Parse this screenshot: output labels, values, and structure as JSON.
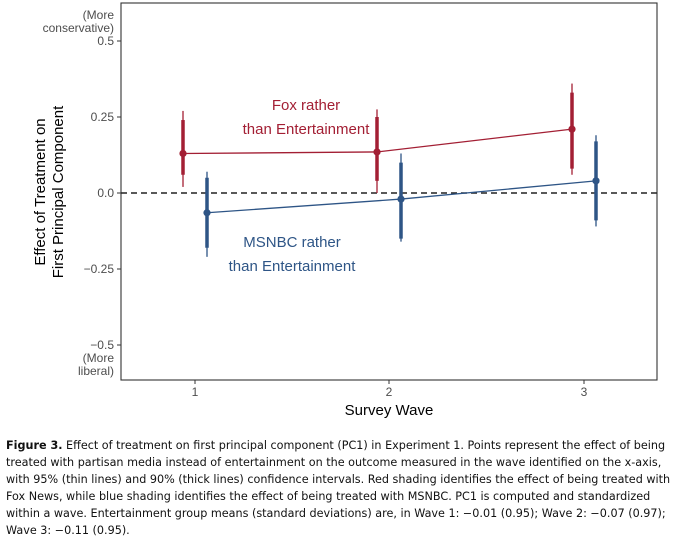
{
  "chart_data": {
    "type": "scatter",
    "xlabel": "Survey Wave",
    "ylabel_line1": "Effect of Treatment on",
    "ylabel_line2": "First Principal Component",
    "x": [
      1,
      2,
      3
    ],
    "ylim": [
      -0.5,
      0.5
    ],
    "y_ticks": [
      {
        "value": 0.5,
        "lines": [
          "(More",
          "conservative)",
          "0.5"
        ]
      },
      {
        "value": 0.25,
        "lines": [
          "0.25"
        ]
      },
      {
        "value": 0.0,
        "lines": [
          "0.0"
        ]
      },
      {
        "value": -0.25,
        "lines": [
          "−0.25"
        ]
      },
      {
        "value": -0.5,
        "lines": [
          "−0.5",
          "(More",
          "liberal)"
        ]
      }
    ],
    "x_ticks": [
      "1",
      "2",
      "3"
    ],
    "reference_line": {
      "y": 0,
      "style": "dashed"
    },
    "grid": false,
    "series": [
      {
        "key": "fox",
        "color": "#a31f34",
        "label_lines": [
          "Fox rather",
          "than Entertainment"
        ],
        "points": [
          {
            "wave": 1,
            "estimate": 0.13,
            "ci90": [
              0.06,
              0.24
            ],
            "ci95": [
              0.02,
              0.27
            ]
          },
          {
            "wave": 2,
            "estimate": 0.135,
            "ci90": [
              0.04,
              0.25
            ],
            "ci95": [
              0.0,
              0.275
            ]
          },
          {
            "wave": 3,
            "estimate": 0.21,
            "ci90": [
              0.08,
              0.33
            ],
            "ci95": [
              0.06,
              0.36
            ]
          }
        ]
      },
      {
        "key": "msnbc",
        "color": "#2e5586",
        "label_lines": [
          "MSNBC rather",
          "than Entertainment"
        ],
        "points": [
          {
            "wave": 1,
            "estimate": -0.065,
            "ci90": [
              -0.18,
              0.05
            ],
            "ci95": [
              -0.21,
              0.07
            ]
          },
          {
            "wave": 2,
            "estimate": -0.02,
            "ci90": [
              -0.15,
              0.1
            ],
            "ci95": [
              -0.16,
              0.13
            ]
          },
          {
            "wave": 3,
            "estimate": 0.04,
            "ci90": [
              -0.09,
              0.17
            ],
            "ci95": [
              -0.11,
              0.19
            ]
          }
        ]
      }
    ]
  },
  "caption": {
    "label": "Figure 3.",
    "text": " Effect of treatment on first principal component (PC1) in Experiment 1. Points represent the effect of being treated with partisan media instead of entertainment on the outcome measured in the wave identified on the x-axis, with 95% (thin lines) and 90% (thick lines) confidence intervals. Red shading identifies the effect of being treated with Fox News, while blue shading identifies the effect of being treated with MSNBC. PC1 is computed and standardized within a wave. Entertainment group means (standard deviations) are, in Wave 1: −0.01 (0.95); Wave 2: −0.07 (0.97); Wave 3: −0.11 (0.95)."
  }
}
